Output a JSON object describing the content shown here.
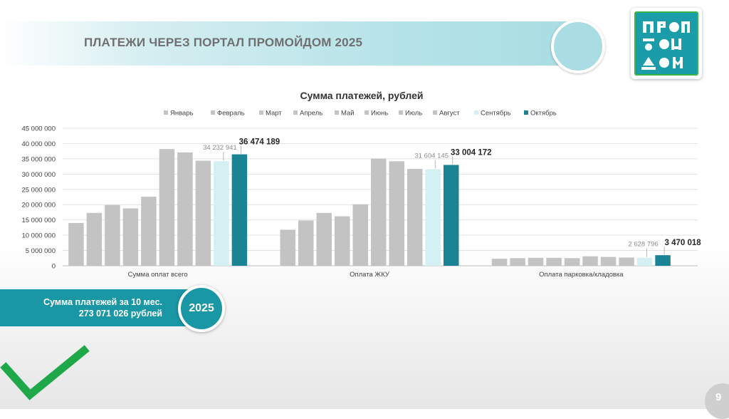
{
  "header": {
    "title": "ПЛАТЕЖИ ЧЕРЕЗ ПОРТАЛ ПРОМОЙДОМ 2025"
  },
  "summary": {
    "line1": "Сумма платежей за 10 мес.",
    "line2": "273 071 026 рублей",
    "year": "2025"
  },
  "page_number": "9",
  "colors": {
    "grey": "#c3c3c3",
    "light": "#d4f0f2",
    "teal": "#1a8494",
    "band": "#1a97a4",
    "check": "#1fa84a"
  },
  "chart_data": {
    "type": "bar",
    "title": "Сумма платежей, рублей",
    "series_names": [
      "Январь",
      "Февраль",
      "Март",
      "Апрель",
      "Май",
      "Июнь",
      "Июль",
      "Август",
      "Сентябрь",
      "Октябрь"
    ],
    "categories": [
      "Сумма оплат всего",
      "Оплата ЖКУ",
      "Оплата парковка/кладовка"
    ],
    "values": [
      [
        14000000,
        17300000,
        19900000,
        18800000,
        22600000,
        38200000,
        37100000,
        34400000,
        34232941,
        36474189
      ],
      [
        11800000,
        14800000,
        17300000,
        16200000,
        20100000,
        35100000,
        34200000,
        31700000,
        31604145,
        33004172
      ],
      [
        2300000,
        2500000,
        2600000,
        2600000,
        2500000,
        3100000,
        2900000,
        2700000,
        2628796,
        3470018
      ]
    ],
    "data_labels": [
      {
        "category": 0,
        "series": 8,
        "text": "34 232 941",
        "bold": false
      },
      {
        "category": 0,
        "series": 9,
        "text": "36 474 189",
        "bold": true
      },
      {
        "category": 1,
        "series": 8,
        "text": "31 604 145",
        "bold": false
      },
      {
        "category": 1,
        "series": 9,
        "text": "33 004 172",
        "bold": true
      },
      {
        "category": 2,
        "series": 8,
        "text": "2 628 796",
        "bold": false
      },
      {
        "category": 2,
        "series": 9,
        "text": "3 470 018",
        "bold": true
      }
    ],
    "y_ticks": [
      "0",
      "5 000 000",
      "10 000 000",
      "15 000 000",
      "20 000 000",
      "25 000 000",
      "30 000 000",
      "35 000 000",
      "40 000 000",
      "45 000 000"
    ],
    "ylim": [
      0,
      45000000
    ],
    "grid": true,
    "legend_position": "top"
  }
}
